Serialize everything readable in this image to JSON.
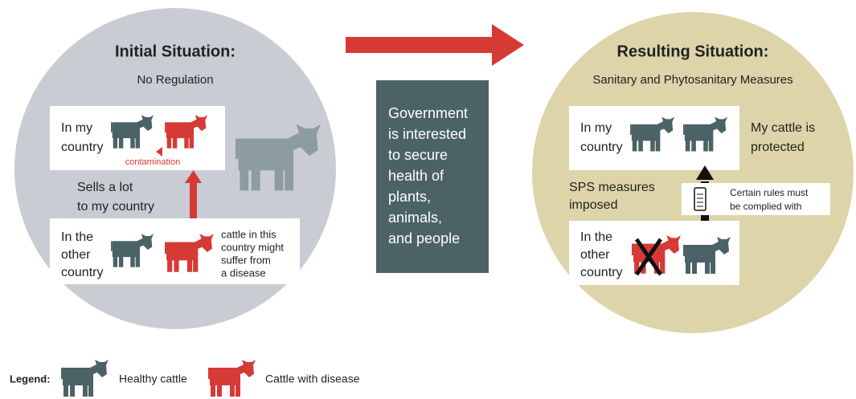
{
  "left": {
    "title": "Initial Situation:",
    "subtitle": "No Regulation",
    "top_box": {
      "label": [
        "In my",
        "country"
      ],
      "note": "contamination"
    },
    "middle_label": [
      "Sells a lot",
      "to my country"
    ],
    "bottom_box": {
      "label": [
        "In the",
        "other",
        "country"
      ],
      "note": [
        "cattle in this",
        "country might",
        "suffer from",
        "a disease"
      ]
    }
  },
  "center": {
    "text": [
      "Government",
      "is interested",
      "to secure",
      "health of",
      "plants,",
      "animals,",
      "and people"
    ]
  },
  "right": {
    "title": "Resulting Situation:",
    "subtitle": "Sanitary and Phytosanitary Measures",
    "top_box": {
      "label": [
        "In my",
        "country"
      ],
      "note": [
        "My cattle is",
        "protected"
      ]
    },
    "middle_label": [
      "SPS measures",
      "imposed"
    ],
    "rules_note": [
      "Certain rules must",
      "be complied with"
    ],
    "bottom_box": {
      "label": [
        "In the",
        "other",
        "country"
      ]
    }
  },
  "legend": {
    "title": "Legend:",
    "items": [
      "Healthy cattle",
      "Cattle with disease"
    ]
  }
}
